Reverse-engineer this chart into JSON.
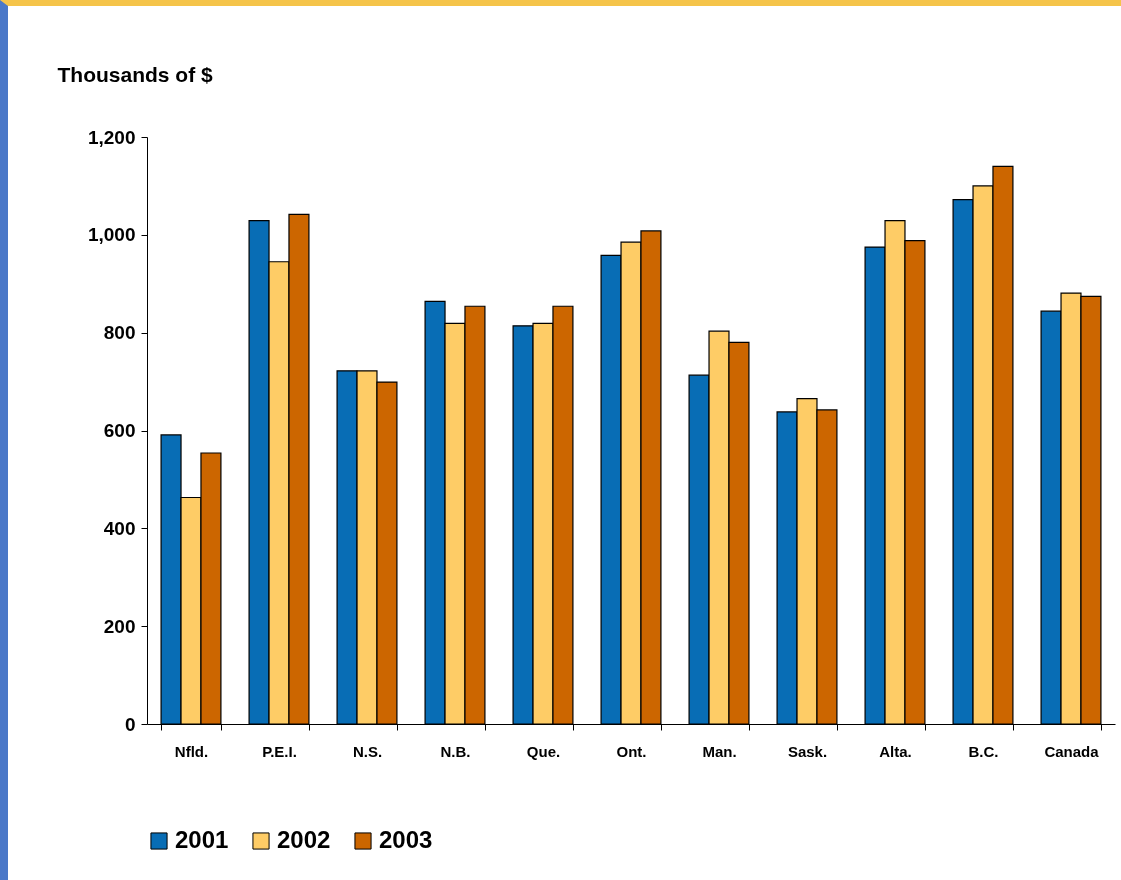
{
  "chart_data": {
    "type": "bar",
    "ylabel": "Thousands of $",
    "categories": [
      "Nfld.",
      "P.E.I.",
      "N.S.",
      "N.B.",
      "Que.",
      "Ont.",
      "Man.",
      "Sask.",
      "Alta.",
      "B.C.",
      "Canada"
    ],
    "series": [
      {
        "name": "2001",
        "color": "#086db5",
        "values": [
          591,
          1029,
          722,
          864,
          814,
          958,
          713,
          638,
          975,
          1072,
          844
        ]
      },
      {
        "name": "2002",
        "color": "#fecc66",
        "values": [
          463,
          945,
          722,
          819,
          819,
          985,
          803,
          665,
          1029,
          1100,
          881
        ]
      },
      {
        "name": "2003",
        "color": "#cc6600",
        "values": [
          554,
          1042,
          699,
          854,
          854,
          1008,
          780,
          642,
          988,
          1140,
          874
        ]
      }
    ],
    "ylim": [
      0,
      1200
    ],
    "yticks": [
      0,
      200,
      400,
      600,
      800,
      {
        "value": 1000,
        "label": "1,000"
      },
      {
        "value": 1200,
        "label": "1,200"
      }
    ],
    "grid": false,
    "legend": "bottom"
  }
}
